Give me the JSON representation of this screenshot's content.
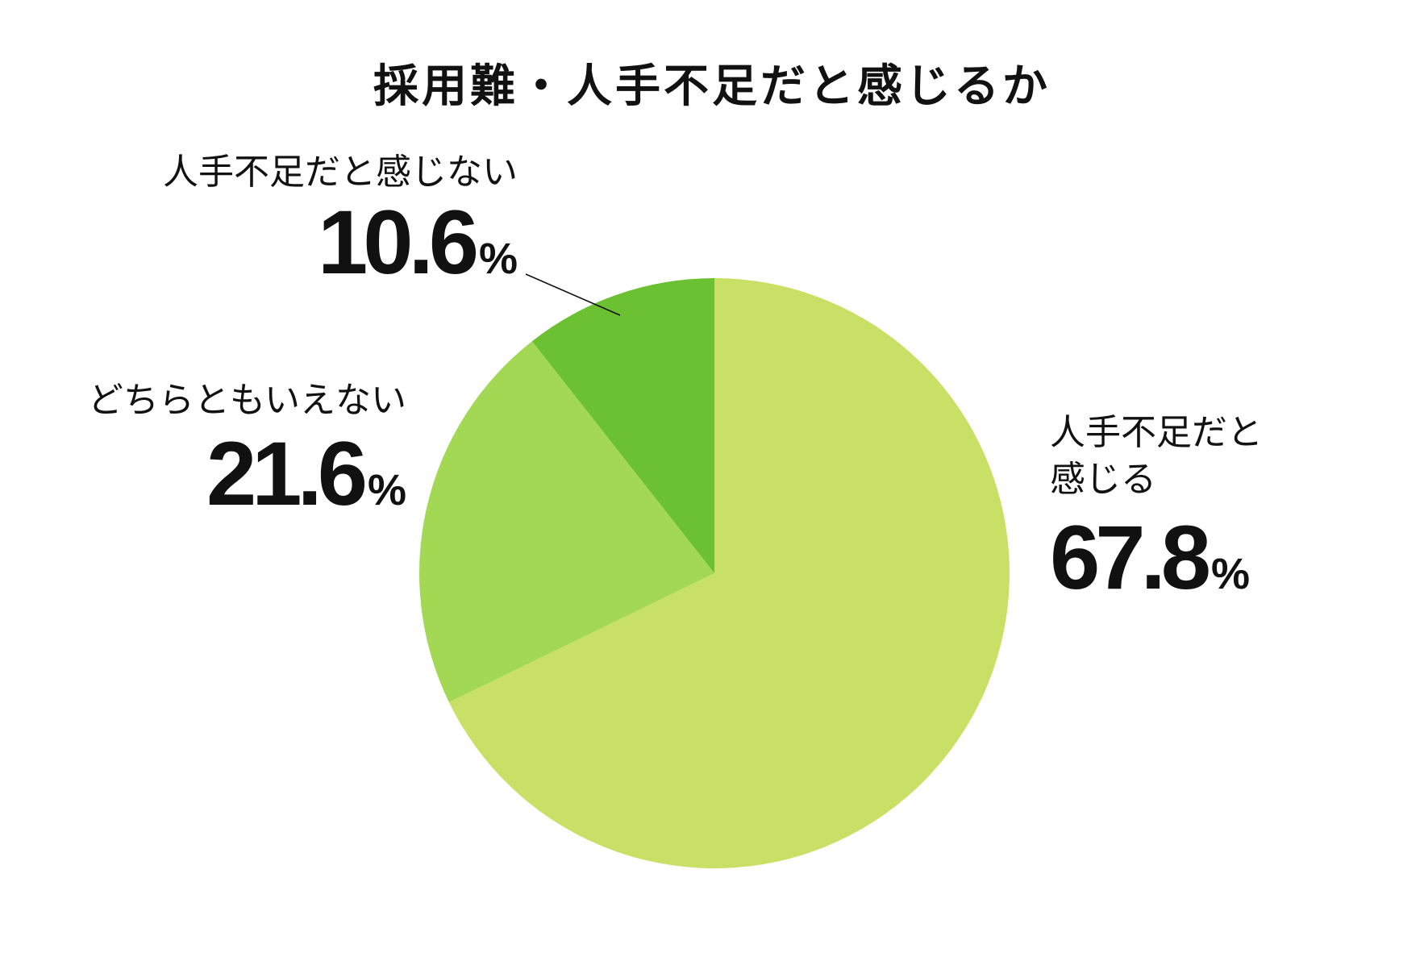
{
  "chart_data": {
    "type": "pie",
    "title": "採用難・人手不足だと感じるか",
    "slices": [
      {
        "label": "人手不足だと感じる",
        "label_lines": [
          "人手不足だと",
          "感じる"
        ],
        "value": 67.8,
        "value_text": "67.8",
        "color": "#c9e066"
      },
      {
        "label": "どちらともいえない",
        "label_lines": [
          "どちらともいえない"
        ],
        "value": 21.6,
        "value_text": "21.6",
        "color": "#a3d855"
      },
      {
        "label": "人手不足だと感じない",
        "label_lines": [
          "人手不足だと感じない"
        ],
        "value": 10.6,
        "value_text": "10.6",
        "color": "#6cc133"
      }
    ],
    "percent_sign": "%",
    "start_angle": "12 o'clock",
    "direction": "clockwise",
    "legend": "none"
  }
}
